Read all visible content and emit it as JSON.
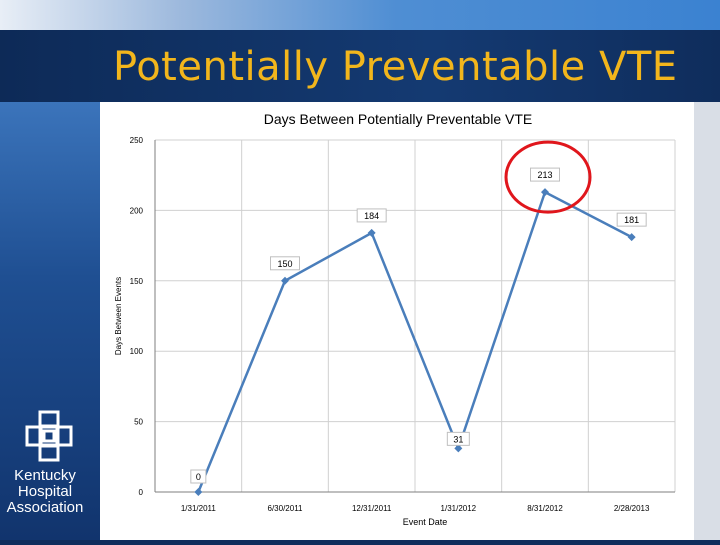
{
  "slide": {
    "title": "Potentially Preventable VTE"
  },
  "logo": {
    "lines": [
      "Kentucky",
      "Hospital",
      "Association"
    ]
  },
  "colors": {
    "title": "#f2b61c",
    "series": "#4a7ebb",
    "highlight": "#e0161c",
    "background": "#0f2d5c"
  },
  "chart_data": {
    "type": "line",
    "title": "Days Between Potentially Preventable VTE",
    "xlabel": "Event Date",
    "ylabel": "Days Between Events",
    "ylim": [
      0,
      250
    ],
    "yticks": [
      0,
      50,
      100,
      150,
      200,
      250
    ],
    "categories": [
      "1/31/2011",
      "6/30/2011",
      "12/31/2011",
      "1/31/2012",
      "8/31/2012",
      "2/28/2013"
    ],
    "series": [
      {
        "name": "Days Between Events",
        "values": [
          0,
          150,
          184,
          31,
          213,
          181
        ]
      }
    ],
    "data_labels": [
      "0",
      "150",
      "184",
      "31",
      "213",
      "181"
    ],
    "grid": true,
    "annotation": {
      "type": "circle",
      "target_index": 4
    }
  }
}
